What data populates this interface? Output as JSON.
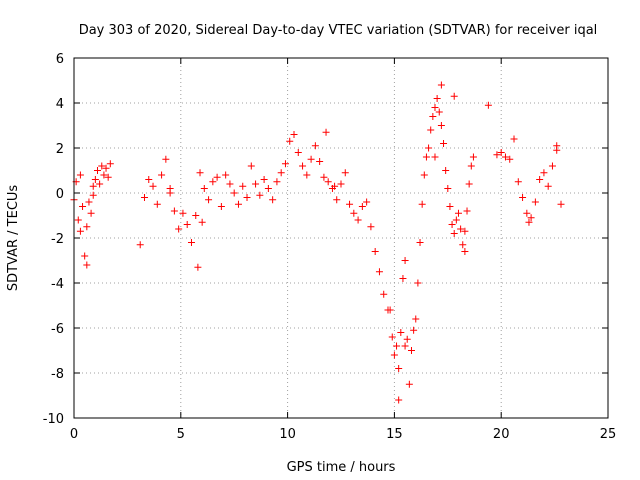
{
  "chart_data": {
    "type": "scatter",
    "title": "Day 303 of 2020, Sidereal Day-to-day VTEC variation (SDTVAR) for receiver iqal",
    "xlabel": "GPS time / hours",
    "ylabel": "SDTVAR / TECUs",
    "xlim": [
      0,
      25
    ],
    "ylim": [
      -10,
      6
    ],
    "xticks": [
      "0",
      "5",
      "10",
      "15",
      "20",
      "25"
    ],
    "yticks": [
      "-10",
      "-8",
      "-6",
      "-4",
      "-2",
      "0",
      "2",
      "4",
      "6"
    ],
    "grid": true,
    "marker": "+",
    "color": "#ff0000",
    "series": [
      {
        "name": "SDTVAR",
        "x": [
          0.0,
          0.1,
          0.2,
          0.3,
          0.4,
          0.5,
          0.6,
          0.7,
          0.8,
          0.9,
          1.0,
          1.1,
          1.2,
          1.3,
          1.4,
          1.5,
          1.6,
          1.7,
          3.1,
          3.3,
          3.5,
          3.7,
          3.9,
          4.1,
          4.3,
          4.5,
          4.7,
          4.9,
          5.1,
          5.3,
          5.5,
          5.7,
          5.9,
          6.1,
          6.3,
          6.5,
          6.7,
          6.9,
          7.1,
          7.3,
          7.5,
          7.7,
          7.9,
          8.1,
          8.3,
          8.5,
          8.7,
          8.9,
          9.1,
          9.3,
          9.5,
          9.7,
          9.9,
          10.1,
          10.3,
          10.5,
          10.7,
          10.9,
          11.1,
          11.3,
          11.5,
          11.7,
          11.9,
          12.1,
          12.3,
          12.5,
          12.7,
          12.9,
          13.1,
          13.3,
          13.5,
          13.7,
          13.9,
          14.1,
          14.3,
          14.5,
          14.7,
          14.9,
          15.0,
          15.1,
          15.2,
          15.3,
          15.4,
          15.5,
          15.6,
          15.7,
          15.8,
          15.9,
          16.0,
          16.1,
          16.2,
          16.3,
          16.4,
          16.5,
          16.6,
          16.7,
          16.8,
          16.9,
          17.0,
          17.1,
          17.2,
          17.3,
          17.4,
          17.5,
          17.6,
          17.7,
          17.8,
          17.9,
          18.0,
          18.1,
          18.2,
          18.3,
          18.4,
          18.5,
          18.6,
          18.7,
          19.4,
          19.8,
          20.0,
          20.2,
          20.4,
          20.6,
          20.8,
          21.0,
          21.2,
          21.4,
          21.6,
          21.8,
          22.0,
          22.2,
          22.4,
          22.6,
          22.8,
          0.3,
          0.6,
          0.9,
          4.5,
          5.8,
          6.0,
          14.8,
          15.2,
          15.5,
          16.9,
          17.2,
          17.8,
          18.3,
          11.8,
          12.2,
          21.3,
          22.6
        ],
        "y": [
          -0.3,
          0.5,
          -1.2,
          0.8,
          -0.6,
          -2.8,
          -1.5,
          -0.4,
          -0.9,
          0.3,
          0.6,
          1.0,
          0.4,
          1.2,
          0.8,
          1.1,
          0.7,
          1.3,
          -2.3,
          -0.2,
          0.6,
          0.3,
          -0.5,
          0.8,
          1.5,
          0.2,
          -0.8,
          -1.6,
          -0.9,
          -1.4,
          -2.2,
          -1.0,
          0.9,
          0.2,
          -0.3,
          0.5,
          0.7,
          -0.6,
          0.8,
          0.4,
          0.0,
          -0.5,
          0.3,
          -0.2,
          1.2,
          0.4,
          -0.1,
          0.6,
          0.2,
          -0.3,
          0.5,
          0.9,
          1.3,
          2.3,
          2.6,
          1.8,
          1.2,
          0.8,
          1.5,
          2.1,
          1.4,
          0.7,
          0.5,
          0.2,
          -0.3,
          0.4,
          0.9,
          -0.5,
          -0.9,
          -1.2,
          -0.6,
          -0.4,
          -1.5,
          -2.6,
          -3.5,
          -4.5,
          -5.2,
          -6.4,
          -7.2,
          -6.8,
          -7.8,
          -6.2,
          -3.8,
          -3.0,
          -6.5,
          -8.5,
          -7.0,
          -6.1,
          -5.6,
          -4.0,
          -2.2,
          -0.5,
          0.8,
          1.6,
          2.0,
          2.8,
          3.4,
          3.8,
          4.2,
          3.6,
          3.0,
          2.2,
          1.0,
          0.2,
          -0.6,
          -1.4,
          -1.8,
          -1.2,
          -0.9,
          -1.6,
          -2.3,
          -1.7,
          -0.8,
          0.4,
          1.2,
          1.6,
          3.9,
          1.7,
          1.8,
          1.6,
          1.5,
          2.4,
          0.5,
          -0.2,
          -0.9,
          -1.1,
          -0.4,
          0.6,
          0.9,
          0.3,
          1.2,
          1.9,
          -0.5,
          -1.7,
          -3.2,
          -0.1,
          0.0,
          -3.3,
          -1.3,
          -5.2,
          -9.2,
          -6.8,
          1.6,
          4.8,
          4.3,
          -2.6,
          2.7,
          0.3,
          -1.3,
          2.1
        ]
      }
    ]
  }
}
